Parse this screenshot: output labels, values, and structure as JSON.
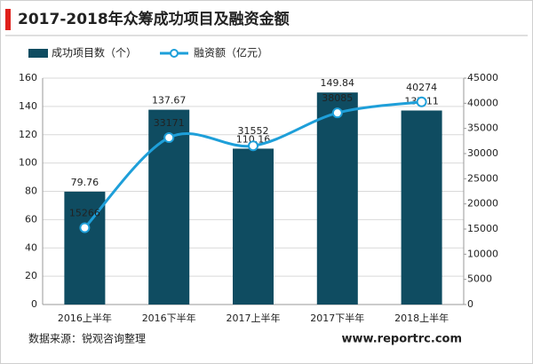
{
  "chart_data": {
    "type": "bar",
    "title": "2017-2018年众筹成功项目及融资金额",
    "categories": [
      "2016上半年",
      "2016下半年",
      "2017上半年",
      "2017下半年",
      "2018上半年"
    ],
    "series": [
      {
        "name": "成功项目数（个）",
        "color": "#0f4c61",
        "values": [
          79.76,
          137.67,
          110.16,
          149.84,
          137.11
        ]
      },
      {
        "name": "融资额（亿元）",
        "color": "#1e9fd9",
        "values": [
          15266,
          33171,
          31552,
          38085,
          40274
        ],
        "axis": "y2",
        "type": "line"
      }
    ],
    "ylim": [
      0,
      160
    ],
    "yticks": [
      0,
      20,
      40,
      60,
      80,
      100,
      120,
      140,
      160
    ],
    "y2lim": [
      0,
      45000
    ],
    "y2ticks": [
      0,
      5000,
      10000,
      15000,
      20000,
      25000,
      30000,
      35000,
      40000,
      45000
    ],
    "grid": true,
    "source": "数据来源：锐观咨询整理",
    "website": "www.reportrc.com"
  }
}
